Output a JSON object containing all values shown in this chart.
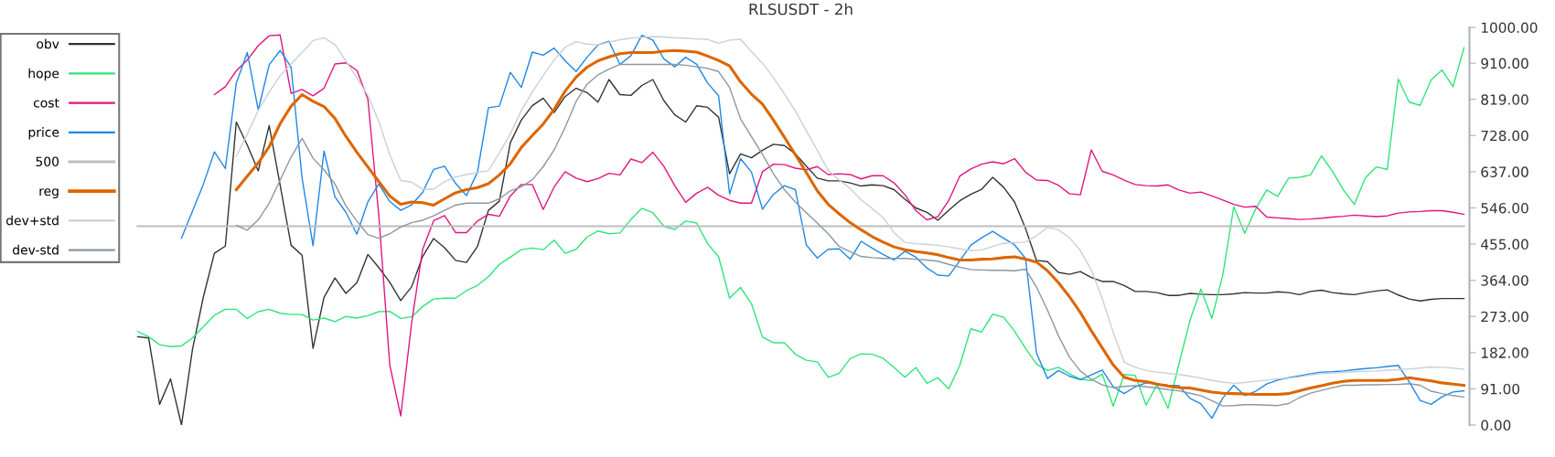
{
  "chart_data": {
    "type": "line",
    "title": "RLSUSDT - 2h",
    "categories": [
      null,
      null,
      null,
      null,
      null,
      null,
      null,
      null,
      null,
      null,
      null,
      null,
      null,
      null,
      null,
      null,
      null,
      null,
      null,
      null,
      null,
      null,
      null,
      null,
      null,
      null,
      null,
      null,
      null,
      null,
      null,
      null,
      null,
      null,
      null,
      null,
      null,
      null,
      null,
      null,
      null,
      null,
      null,
      null,
      null,
      null,
      null,
      null,
      null,
      null,
      null,
      null,
      null,
      null,
      null,
      null,
      null,
      null,
      null,
      null,
      null,
      null,
      null,
      null,
      null,
      null,
      null,
      null,
      null,
      null,
      null,
      null,
      null,
      null,
      null,
      null,
      null,
      null,
      null,
      null,
      null,
      null,
      null,
      null,
      null,
      null,
      null,
      null,
      null,
      null,
      null,
      null,
      null,
      null,
      null,
      null,
      null,
      null,
      null,
      null,
      null,
      null,
      null,
      null,
      null,
      null,
      null,
      null,
      null,
      null,
      null,
      null,
      null,
      null,
      null,
      null,
      null,
      null,
      null,
      null,
      null,
      null
    ],
    "ylim": [
      0,
      1000
    ],
    "yticks": [
      {
        "value": 0,
        "label": "0.00"
      },
      {
        "value": 91,
        "label": "91.00"
      },
      {
        "value": 182,
        "label": "182.00"
      },
      {
        "value": 273,
        "label": "273.00"
      },
      {
        "value": 364,
        "label": "364.00"
      },
      {
        "value": 455,
        "label": "455.00"
      },
      {
        "value": 546,
        "label": "546.00"
      },
      {
        "value": 637,
        "label": "637.00"
      },
      {
        "value": 728,
        "label": "728.00"
      },
      {
        "value": 819,
        "label": "819.00"
      },
      {
        "value": 910,
        "label": "910.00"
      },
      {
        "value": 1000,
        "label": "1000.00"
      }
    ],
    "tick_labels": "y",
    "grid": false,
    "legend": "top left",
    "line_style": "solid",
    "series": [
      {
        "name": "obv",
        "color": "#333333",
        "values": [
          222,
          219,
          52,
          116,
          0,
          190,
          323,
          432,
          450,
          762,
          704,
          639,
          753,
          603,
          452,
          427,
          193,
          321,
          370,
          331,
          358,
          429,
          396,
          359,
          313,
          348,
          424,
          469,
          446,
          414,
          409,
          449,
          540,
          563,
          710,
          767,
          803,
          822,
          786,
          826,
          847,
          836,
          812,
          869,
          831,
          829,
          854,
          869,
          816,
          780,
          762,
          803,
          799,
          774,
          632,
          682,
          672,
          691,
          706,
          703,
          682,
          651,
          621,
          614,
          614,
          609,
          601,
          604,
          602,
          592,
          568,
          546,
          535,
          515,
          540,
          564,
          580,
          593,
          623,
          598,
          561,
          494,
          414,
          411,
          384,
          379,
          386,
          371,
          361,
          361,
          351,
          336,
          336,
          333,
          326,
          326,
          331,
          329,
          328,
          328,
          330,
          333,
          332,
          332,
          335,
          333,
          328,
          336,
          339,
          333,
          330,
          328,
          333,
          337,
          340,
          327,
          317,
          312,
          316,
          318,
          318,
          318
        ]
      },
      {
        "name": "hope",
        "color": "#2ee57a",
        "values": [
          235,
          222,
          202,
          197,
          199,
          219,
          247,
          276,
          291,
          291,
          268,
          285,
          291,
          281,
          278,
          278,
          264,
          269,
          260,
          273,
          269,
          275,
          285,
          286,
          268,
          272,
          298,
          317,
          319,
          319,
          338,
          351,
          373,
          404,
          422,
          441,
          445,
          441,
          465,
          432,
          442,
          473,
          488,
          481,
          483,
          517,
          545,
          534,
          500,
          492,
          513,
          508,
          456,
          423,
          319,
          346,
          305,
          221,
          207,
          207,
          178,
          163,
          159,
          120,
          130,
          167,
          179,
          178,
          168,
          145,
          120,
          145,
          105,
          119,
          91,
          150,
          242,
          234,
          279,
          271,
          236,
          193,
          153,
          137,
          145,
          129,
          115,
          112,
          128,
          47,
          127,
          125,
          50,
          102,
          42,
          154,
          263,
          342,
          268,
          378,
          549,
          482,
          544,
          591,
          575,
          621,
          623,
          629,
          677,
          638,
          591,
          555,
          622,
          649,
          643,
          870,
          812,
          804,
          868,
          893,
          851,
          949
        ]
      },
      {
        "name": "cost",
        "color": "#e0157f",
        "values": [
          null,
          null,
          null,
          null,
          null,
          null,
          null,
          831,
          851,
          891,
          918,
          954,
          979,
          981,
          834,
          844,
          828,
          847,
          908,
          911,
          892,
          820,
          527,
          151,
          23,
          258,
          442,
          514,
          527,
          484,
          484,
          513,
          530,
          525,
          576,
          605,
          605,
          542,
          599,
          637,
          621,
          612,
          620,
          633,
          629,
          669,
          660,
          686,
          651,
          602,
          560,
          583,
          598,
          578,
          565,
          558,
          558,
          637,
          656,
          655,
          646,
          642,
          650,
          630,
          632,
          630,
          619,
          627,
          627,
          609,
          579,
          539,
          516,
          524,
          565,
          626,
          644,
          656,
          662,
          657,
          670,
          636,
          616,
          615,
          603,
          582,
          579,
          692,
          638,
          629,
          616,
          605,
          602,
          601,
          604,
          591,
          583,
          586,
          576,
          566,
          555,
          548,
          550,
          523,
          521,
          519,
          517,
          518,
          520,
          523,
          525,
          528,
          526,
          524,
          526,
          533,
          536,
          537,
          539,
          539,
          535,
          530
        ]
      },
      {
        "name": "price",
        "color": "#1f88e5",
        "values": [
          null,
          null,
          null,
          null,
          470,
          538,
          606,
          687,
          645,
          860,
          937,
          792,
          906,
          942,
          900,
          621,
          451,
          689,
          574,
          535,
          480,
          561,
          606,
          562,
          540,
          554,
          585,
          643,
          651,
          608,
          577,
          636,
          798,
          802,
          887,
          849,
          938,
          930,
          948,
          916,
          889,
          925,
          956,
          965,
          907,
          929,
          980,
          968,
          921,
          901,
          925,
          907,
          860,
          828,
          581,
          670,
          636,
          543,
          580,
          602,
          592,
          453,
          420,
          442,
          443,
          417,
          462,
          445,
          429,
          415,
          437,
          422,
          395,
          377,
          375,
          413,
          452,
          471,
          487,
          470,
          453,
          419,
          181,
          117,
          137,
          123,
          114,
          126,
          138,
          96,
          79,
          96,
          106,
          103,
          100,
          99,
          67,
          53,
          17,
          68,
          100,
          74,
          85,
          103,
          113,
          119,
          124,
          129,
          133,
          134,
          136,
          139,
          142,
          144,
          147,
          150,
          109,
          62,
          52,
          71,
          83,
          86
        ]
      },
      {
        "name": "500",
        "color": "#bdbdbd",
        "values": [
          500,
          500,
          500,
          500,
          500,
          500,
          500,
          500,
          500,
          500,
          500,
          500,
          500,
          500,
          500,
          500,
          500,
          500,
          500,
          500,
          500,
          500,
          500,
          500,
          500,
          500,
          500,
          500,
          500,
          500,
          500,
          500,
          500,
          500,
          500,
          500,
          500,
          500,
          500,
          500,
          500,
          500,
          500,
          500,
          500,
          500,
          500,
          500,
          500,
          500,
          500,
          500,
          500,
          500,
          500,
          500,
          500,
          500,
          500,
          500,
          500,
          500,
          500,
          500,
          500,
          500,
          500,
          500,
          500,
          500,
          500,
          500,
          500,
          500,
          500,
          500,
          500,
          500,
          500,
          500,
          500,
          500,
          500,
          500,
          500,
          500,
          500,
          500,
          500,
          500,
          500,
          500,
          500,
          500,
          500,
          500,
          500,
          500,
          500,
          500,
          500,
          500,
          500,
          500,
          500,
          500,
          500,
          500,
          500,
          500,
          500,
          500,
          500,
          500,
          500,
          500,
          500,
          500,
          500,
          500,
          500,
          500
        ]
      },
      {
        "name": "reg",
        "color": "#dd6600",
        "values": [
          null,
          null,
          null,
          null,
          null,
          null,
          null,
          null,
          null,
          592,
          626,
          659,
          700,
          758,
          802,
          831,
          814,
          801,
          771,
          726,
          686,
          649,
          612,
          576,
          555,
          561,
          559,
          553,
          569,
          584,
          592,
          597,
          607,
          629,
          657,
          698,
          728,
          757,
          794,
          840,
          875,
          900,
          916,
          926,
          934,
          937,
          937,
          937,
          940,
          942,
          940,
          938,
          928,
          917,
          903,
          863,
          832,
          807,
          767,
          724,
          680,
          635,
          589,
          555,
          531,
          509,
          491,
          474,
          460,
          448,
          441,
          436,
          433,
          428,
          421,
          415,
          415,
          417,
          418,
          421,
          423,
          417,
          410,
          388,
          358,
          323,
          283,
          237,
          194,
          151,
          120,
          112,
          109,
          103,
          98,
          94,
          93,
          88,
          83,
          80,
          79,
          78,
          77,
          77,
          77,
          79,
          86,
          93,
          99,
          105,
          110,
          112,
          112,
          112,
          112,
          115,
          119,
          115,
          111,
          106,
          103,
          100
        ]
      },
      {
        "name": "dev+std",
        "color": "#c9d0d6",
        "values": [
          null,
          null,
          null,
          null,
          null,
          null,
          null,
          null,
          null,
          676,
          732,
          791,
          837,
          879,
          908,
          937,
          967,
          974,
          957,
          915,
          873,
          829,
          764,
          680,
          615,
          611,
          593,
          593,
          612,
          624,
          630,
          635,
          640,
          684,
          732,
          791,
          837,
          879,
          918,
          950,
          964,
          958,
          956,
          963,
          969,
          973,
          975,
          977,
          976,
          974,
          973,
          971,
          970,
          960,
          968,
          970,
          939,
          910,
          874,
          833,
          790,
          740,
          691,
          640,
          616,
          595,
          566,
          545,
          522,
          484,
          459,
          456,
          454,
          452,
          448,
          443,
          439,
          440,
          449,
          457,
          459,
          460,
          476,
          497,
          491,
          471,
          439,
          390,
          318,
          233,
          158,
          145,
          137,
          133,
          130,
          127,
          123,
          118,
          112,
          108,
          105,
          107,
          110,
          113,
          116,
          118,
          121,
          126,
          129,
          131,
          132,
          134,
          135,
          136,
          138,
          139,
          141,
          143,
          146,
          145,
          143,
          140
        ]
      },
      {
        "name": "dev-std",
        "color": "#8a97a4",
        "values": [
          null,
          null,
          null,
          null,
          null,
          null,
          null,
          null,
          null,
          502,
          490,
          516,
          558,
          616,
          674,
          721,
          671,
          642,
          606,
          551,
          513,
          479,
          470,
          481,
          498,
          509,
          515,
          526,
          540,
          553,
          558,
          558,
          558,
          569,
          589,
          599,
          617,
          650,
          692,
          749,
          814,
          857,
          881,
          895,
          907,
          907,
          907,
          907,
          907,
          907,
          905,
          901,
          897,
          889,
          849,
          770,
          725,
          681,
          632,
          592,
          561,
          534,
          508,
          481,
          449,
          436,
          424,
          421,
          419,
          419,
          419,
          417,
          415,
          412,
          404,
          397,
          391,
          390,
          389,
          389,
          388,
          392,
          347,
          289,
          225,
          171,
          136,
          115,
          101,
          94,
          97,
          99,
          96,
          93,
          89,
          86,
          80,
          74,
          61,
          48,
          49,
          51,
          51,
          50,
          49,
          54,
          69,
          80,
          87,
          94,
          100,
          100,
          101,
          101,
          102,
          102,
          104,
          100,
          85,
          79,
          74,
          70
        ]
      }
    ]
  }
}
